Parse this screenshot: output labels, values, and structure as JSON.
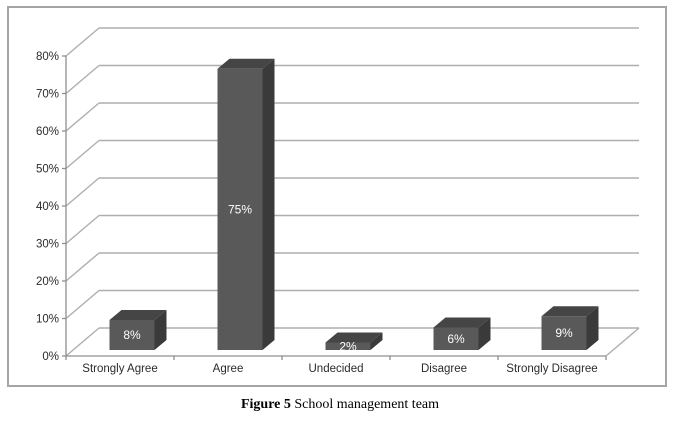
{
  "chart_data": {
    "type": "bar",
    "style": "3d-column",
    "categories": [
      "Strongly Agree",
      "Agree",
      "Undecided",
      "Disagree",
      "Strongly Disagree"
    ],
    "values": [
      8,
      75,
      2,
      6,
      9
    ],
    "bar_labels": [
      "8%",
      "75%",
      "2%",
      "6%",
      "9%"
    ],
    "y_ticks": [
      0,
      10,
      20,
      30,
      40,
      50,
      60,
      70,
      80
    ],
    "y_tick_labels": [
      "0%",
      "10%",
      "20%",
      "30%",
      "40%",
      "50%",
      "60%",
      "70%",
      "80%"
    ],
    "ylim": [
      0,
      80
    ],
    "xlabel": "",
    "ylabel": "",
    "title": "",
    "legend": "none",
    "grid": "horizontal",
    "colors": {
      "bar_front": "#595959",
      "bar_top": "#454545",
      "bar_side": "#3a3a3a",
      "gridline": "#aeaeae",
      "axis": "#8f8f8f",
      "bar_label_text": "#ffffff",
      "tick_text": "#2b2b2b",
      "frame_border": "#a5a5a5"
    }
  },
  "caption": {
    "figure_label": "Figure 5",
    "text": " School management team"
  }
}
